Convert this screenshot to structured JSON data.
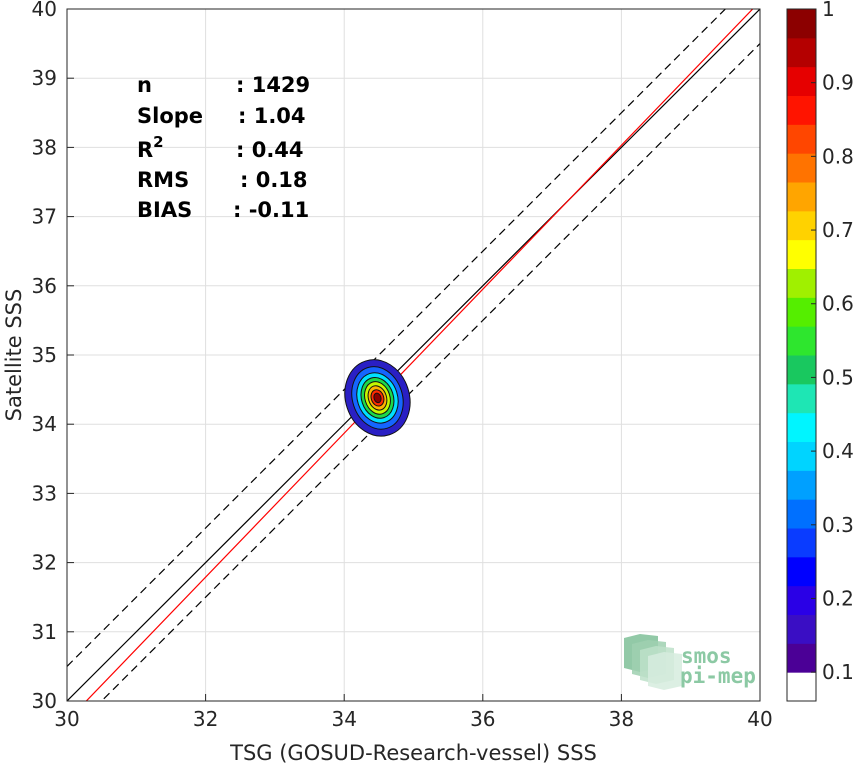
{
  "chart_data": {
    "type": "contour-density-scatter",
    "xlabel": "TSG (GOSUD-Research-vessel) SSS",
    "ylabel": "Satellite SSS",
    "xlim": [
      30,
      40
    ],
    "ylim": [
      30,
      40
    ],
    "x_ticks": [
      "30",
      "32",
      "34",
      "36",
      "38",
      "40"
    ],
    "y_ticks": [
      "30",
      "31",
      "32",
      "33",
      "34",
      "35",
      "36",
      "37",
      "38",
      "39",
      "40"
    ],
    "grid": true,
    "stats": [
      {
        "label": "n",
        "value": ": 1429"
      },
      {
        "label": "Slope",
        "value": ": 1.04"
      },
      {
        "label": "R",
        "sup": "2",
        "value": ": 0.44"
      },
      {
        "label": "RMS",
        "value": ": 0.18"
      },
      {
        "label": "BIAS",
        "value": ": -0.11"
      }
    ],
    "lines": {
      "identity": {
        "slope": 1,
        "intercept": 0,
        "color": "#000000"
      },
      "upper_bound": {
        "slope": 1,
        "intercept": 0.5,
        "color": "#000000",
        "dash": true
      },
      "lower_bound": {
        "slope": 1,
        "intercept": -0.5,
        "color": "#000000",
        "dash": true
      },
      "regression": {
        "slope": 1.04,
        "intercept": -1.49,
        "color": "#ff0000"
      }
    },
    "density_peak": {
      "x": 34.48,
      "y": 34.38
    },
    "contour_levels": [
      {
        "level": 0.05,
        "rx": 0.46,
        "ry": 0.56,
        "color": "#2a1fc4"
      },
      {
        "level": 0.15,
        "rx": 0.36,
        "ry": 0.46,
        "color": "#1565ff"
      },
      {
        "level": 0.3,
        "rx": 0.29,
        "ry": 0.37,
        "color": "#00e0ff"
      },
      {
        "level": 0.45,
        "rx": 0.23,
        "ry": 0.3,
        "color": "#1dd84a"
      },
      {
        "level": 0.6,
        "rx": 0.18,
        "ry": 0.24,
        "color": "#c6f700"
      },
      {
        "level": 0.7,
        "rx": 0.13,
        "ry": 0.18,
        "color": "#ffb300"
      },
      {
        "level": 0.85,
        "rx": 0.09,
        "ry": 0.12,
        "color": "#ff2a00"
      },
      {
        "level": 0.95,
        "rx": 0.05,
        "ry": 0.07,
        "color": "#8c0000"
      }
    ],
    "colorbar": {
      "ticks": [
        "0.1",
        "0.2",
        "0.3",
        "0.4",
        "0.5",
        "0.6",
        "0.7",
        "0.8",
        "0.9",
        "1"
      ],
      "ticks_values": [
        0.1,
        0.2,
        0.3,
        0.4,
        0.5,
        0.6,
        0.7,
        0.8,
        0.9,
        1.0
      ],
      "colors": [
        "#ffffff",
        "#4b0096",
        "#3a0ec4",
        "#2a00e6",
        "#0000ff",
        "#0a3cff",
        "#0070ff",
        "#00a0ff",
        "#00d4ff",
        "#00f5ff",
        "#1ee6b4",
        "#19c85f",
        "#2ee62e",
        "#55ee00",
        "#a0f000",
        "#ffff00",
        "#ffd200",
        "#ffa500",
        "#ff7300",
        "#ff4600",
        "#ff1400",
        "#e60000",
        "#b40000",
        "#8c0000"
      ]
    },
    "logo": {
      "line1": "smos",
      "line2": "pi-mep"
    }
  }
}
